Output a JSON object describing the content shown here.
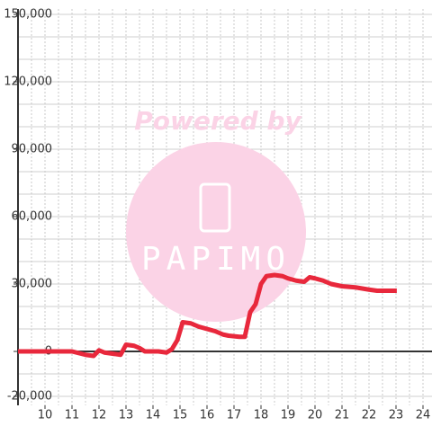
{
  "chart_data": {
    "type": "line",
    "watermark": [
      "Powered by",
      "PAPIMO"
    ],
    "xlim": [
      9,
      24.4
    ],
    "ylim": [
      -24000,
      150000
    ],
    "xticks": [
      10,
      11,
      12,
      13,
      14,
      15,
      16,
      17,
      18,
      19,
      20,
      21,
      22,
      23,
      24
    ],
    "yticks": [
      {
        "value": -20000,
        "label": "-20,000"
      },
      0,
      {
        "value": 30000,
        "label": "30,000"
      },
      {
        "value": 60000,
        "label": "60,000"
      },
      {
        "value": 90000,
        "label": "90,000"
      },
      {
        "value": 120000,
        "label": "120,000"
      },
      {
        "value": 150000,
        "label": "150,000"
      }
    ],
    "y_minor_ticks": [
      -20000,
      -10000,
      0,
      10000,
      20000,
      30000,
      40000,
      50000,
      60000,
      70000,
      80000,
      90000,
      100000,
      110000,
      120000,
      130000,
      140000,
      150000
    ],
    "x_minor_ticks": [
      9.5,
      10,
      10.5,
      11,
      11.5,
      12,
      12.5,
      13,
      13.5,
      14,
      14.5,
      15,
      15.5,
      16,
      16.5,
      17,
      17.5,
      18,
      18.5,
      19,
      19.5,
      20,
      20.5,
      21,
      21.5,
      22,
      22.5,
      23,
      23.5,
      24
    ],
    "grid": true,
    "series": [
      {
        "color": "#e8283c",
        "x": [
          9,
          10,
          11,
          11.5,
          11.8,
          12,
          12.2,
          12.5,
          12.8,
          13,
          13.3,
          13.5,
          13.7,
          14.2,
          14.5,
          14.7,
          14.9,
          15.1,
          15.4,
          15.7,
          16,
          16.3,
          16.6,
          16.8,
          17.2,
          17.4,
          17.6,
          17.8,
          18,
          18.2,
          18.5,
          18.8,
          19,
          19.3,
          19.6,
          19.8,
          20,
          20.3,
          20.6,
          21,
          21.5,
          22,
          22.3,
          23.03
        ],
        "values": [
          0,
          0,
          0,
          -1500,
          -2000,
          500,
          -500,
          -1000,
          -1500,
          3000,
          2500,
          1500,
          0,
          0,
          -500,
          1000,
          5000,
          13000,
          12500,
          11000,
          10000,
          9000,
          7500,
          7000,
          6500,
          6500,
          17500,
          21000,
          30000,
          33500,
          34000,
          33500,
          32500,
          31500,
          31000,
          33000,
          32500,
          31500,
          30000,
          29000,
          28500,
          27500,
          27000,
          27000
        ]
      }
    ]
  }
}
